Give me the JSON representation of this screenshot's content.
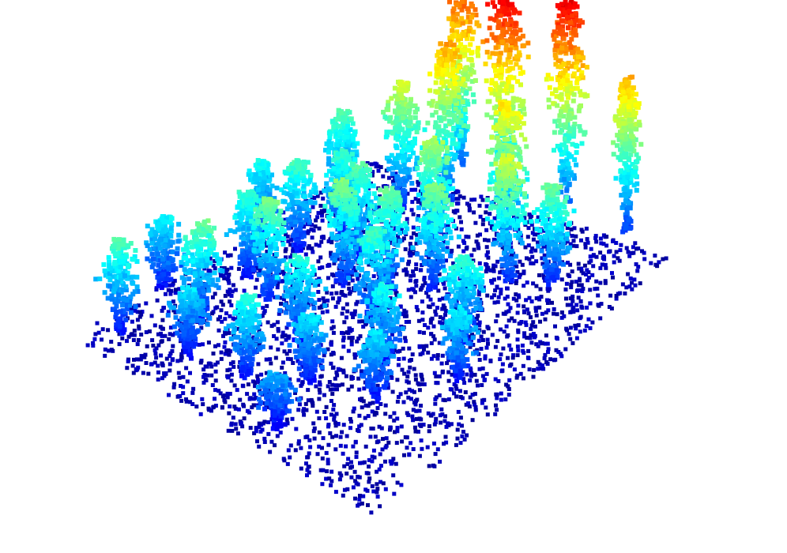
{
  "view": {
    "content": "lidar-point-cloud-forest",
    "colormap": "jet",
    "color_encodes": "height",
    "background": "#ffffff",
    "colormap_stops": [
      "#00007f",
      "#0000ff",
      "#0080ff",
      "#00ffff",
      "#80ff80",
      "#ffff00",
      "#ff8000",
      "#ff0000",
      "#7f0000"
    ]
  }
}
